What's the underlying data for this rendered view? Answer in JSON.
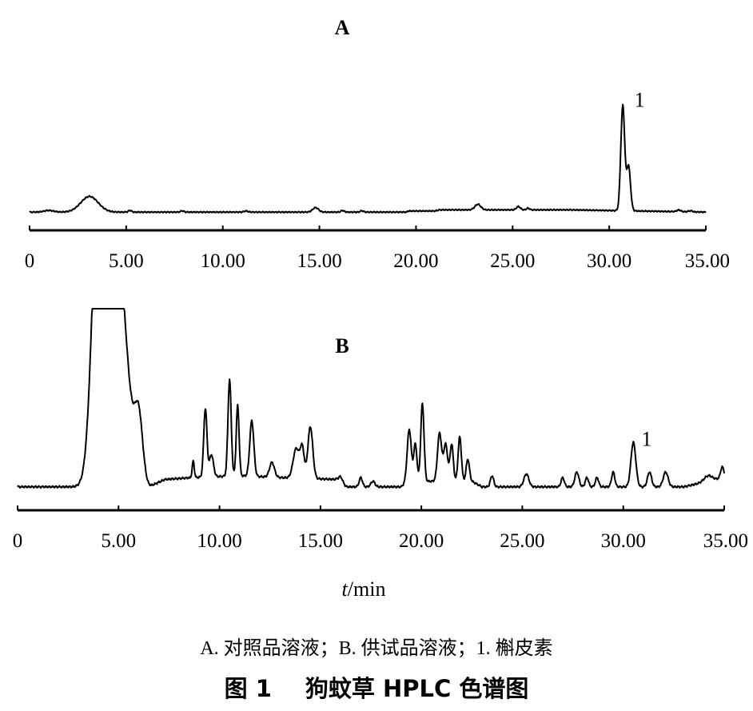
{
  "chart_data": [
    {
      "type": "line",
      "panel_label": "A",
      "xlabel": "",
      "ylabel": "",
      "xlim": [
        0,
        35
      ],
      "ticks": [
        {
          "value": 0,
          "label": "0"
        },
        {
          "value": 5,
          "label": "5.00"
        },
        {
          "value": 10,
          "label": "10.00"
        },
        {
          "value": 15,
          "label": "15.00"
        },
        {
          "value": 20,
          "label": "20.00"
        },
        {
          "value": 25,
          "label": "25.00"
        },
        {
          "value": 30,
          "label": "30.00"
        },
        {
          "value": 35,
          "label": "35.00"
        }
      ],
      "ylim": [
        0,
        100
      ],
      "baseline": 2,
      "series": [
        {
          "baseline_drift": [
            [
              0,
              0
            ],
            [
              19.5,
              0
            ],
            [
              19.6,
              1
            ],
            [
              21,
              1
            ],
            [
              21.2,
              2
            ],
            [
              25.5,
              2
            ],
            [
              28,
              2
            ],
            [
              35,
              0
            ]
          ],
          "peaks": [
            [
              1.0,
              1.5,
              0.25
            ],
            [
              3.1,
              14,
              0.45
            ],
            [
              5.2,
              1.5,
              0.08
            ],
            [
              7.9,
              1.2,
              0.08
            ],
            [
              11.2,
              1,
              0.1
            ],
            [
              14.8,
              4,
              0.15
            ],
            [
              16.2,
              1.5,
              0.08
            ],
            [
              17.2,
              1.2,
              0.08
            ],
            [
              23.2,
              5,
              0.15
            ],
            [
              25.3,
              3,
              0.1
            ],
            [
              25.8,
              1.5,
              0.08
            ],
            [
              30.7,
              94,
              0.1
            ],
            [
              31.0,
              40,
              0.1
            ],
            [
              33.6,
              1.5,
              0.1
            ],
            [
              34.2,
              1,
              0.1
            ]
          ]
        }
      ],
      "annotations": [
        {
          "text": "1",
          "x": 31.3,
          "y": 96
        }
      ]
    },
    {
      "type": "line",
      "panel_label": "B",
      "xlabel": "t/min",
      "ylabel": "",
      "xlim": [
        0,
        35
      ],
      "ticks": [
        {
          "value": 0,
          "label": "0"
        },
        {
          "value": 5,
          "label": "5.00"
        },
        {
          "value": 10,
          "label": "10.00"
        },
        {
          "value": 15,
          "label": "15.00"
        },
        {
          "value": 20,
          "label": "20.00"
        },
        {
          "value": 25,
          "label": "25.00"
        },
        {
          "value": 30,
          "label": "30.00"
        },
        {
          "value": 35,
          "label": "35.00"
        }
      ],
      "ylim": [
        0,
        100
      ],
      "baseline": 4,
      "clip_top": true,
      "series": [
        {
          "baseline_drift": [
            [
              0,
              0
            ],
            [
              6.5,
              0
            ],
            [
              7.3,
              4
            ],
            [
              8.7,
              5
            ],
            [
              11,
              6
            ],
            [
              13,
              5
            ],
            [
              15.8,
              4
            ],
            [
              16.3,
              0
            ],
            [
              19,
              0
            ],
            [
              19.3,
              3
            ],
            [
              22.5,
              3
            ],
            [
              23,
              0
            ],
            [
              33,
              0
            ],
            [
              35,
              5
            ]
          ],
          "peaks": [
            [
              4.1,
              190,
              0.35
            ],
            [
              4.8,
              130,
              0.4
            ],
            [
              5.4,
              35,
              0.35
            ],
            [
              6.0,
              35,
              0.2
            ],
            [
              8.7,
              9,
              0.05
            ],
            [
              9.3,
              37,
              0.08
            ],
            [
              9.6,
              12,
              0.1
            ],
            [
              10.5,
              52,
              0.08
            ],
            [
              10.9,
              38,
              0.07
            ],
            [
              11.6,
              30,
              0.1
            ],
            [
              12.6,
              8,
              0.12
            ],
            [
              13.8,
              16,
              0.15
            ],
            [
              14.1,
              16,
              0.1
            ],
            [
              14.5,
              28,
              0.12
            ],
            [
              16.0,
              3,
              0.1
            ],
            [
              17.0,
              5,
              0.08
            ],
            [
              17.6,
              3,
              0.1
            ],
            [
              19.4,
              28,
              0.1
            ],
            [
              19.7,
              20,
              0.08
            ],
            [
              20.05,
              42,
              0.08
            ],
            [
              20.9,
              26,
              0.1
            ],
            [
              21.2,
              20,
              0.1
            ],
            [
              21.5,
              20,
              0.08
            ],
            [
              21.9,
              24,
              0.08
            ],
            [
              22.3,
              12,
              0.08
            ],
            [
              23.5,
              6,
              0.08
            ],
            [
              25.2,
              7,
              0.12
            ],
            [
              27.0,
              5,
              0.08
            ],
            [
              27.7,
              8,
              0.1
            ],
            [
              28.2,
              5,
              0.08
            ],
            [
              28.7,
              5,
              0.08
            ],
            [
              29.5,
              8,
              0.08
            ],
            [
              30.5,
              24,
              0.12
            ],
            [
              31.3,
              8,
              0.1
            ],
            [
              32.1,
              8,
              0.12
            ],
            [
              34.2,
              3,
              0.2
            ],
            [
              34.9,
              6,
              0.08
            ]
          ]
        }
      ],
      "annotations": [
        {
          "text": "1",
          "x": 30.9,
          "y": 26
        }
      ]
    }
  ],
  "captions": {
    "legend": "A. 对照品溶液；B. 供试品溶液；1. 槲皮素",
    "figure_number": "图 1",
    "figure_title": "狗蚊草 HPLC 色谱图"
  }
}
